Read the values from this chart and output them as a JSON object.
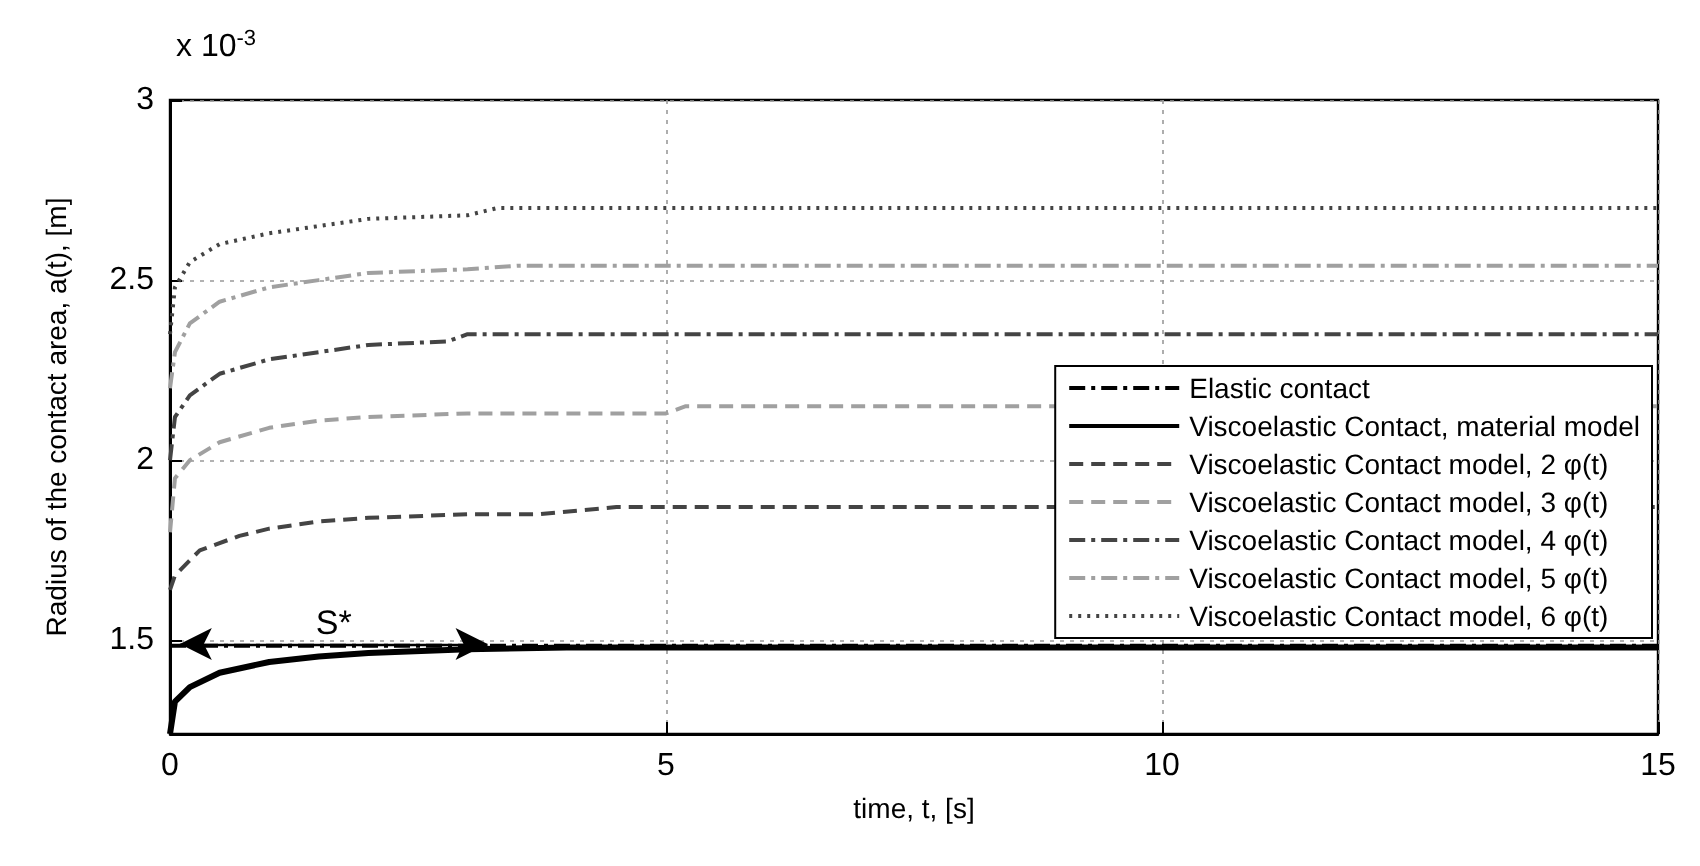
{
  "chart_data": {
    "type": "line",
    "xlabel": "time, t, [s]",
    "ylabel": "Radius of the contact area, a(t), [m]",
    "xlim": [
      0,
      15
    ],
    "xticks": [
      0,
      5,
      10,
      15
    ],
    "ylim": [
      1.24,
      3
    ],
    "yticks": [
      1.5,
      2,
      2.5,
      3
    ],
    "grid": true,
    "legend": "right",
    "marker": "none",
    "annotations": [
      "x 10$^{-3}$",
      {
        "text": "S*",
        "x": 1.65,
        "y": 1.49
      }
    ],
    "series": [
      {
        "name": "Elastic contact",
        "color": "#000000",
        "line_style": "dashdot",
        "x": [
          0,
          15
        ],
        "values": [
          1.485,
          1.485
        ]
      },
      {
        "name": "Viscoelastic Contact, material model",
        "color": "#000000",
        "line_style": "solid",
        "x": [
          0,
          0.05,
          0.2,
          0.5,
          1,
          1.5,
          2,
          3,
          4,
          6,
          15
        ],
        "values": [
          1.24,
          1.33,
          1.37,
          1.41,
          1.44,
          1.455,
          1.465,
          1.475,
          1.48,
          1.48,
          1.48
        ]
      },
      {
        "name": "Viscoelastic Contact model, 2 φ(t)",
        "color": "#444444",
        "line_style": "dashed",
        "x": [
          0,
          0.05,
          0.3,
          0.7,
          1,
          1.5,
          2,
          3,
          3.7,
          4.5,
          15
        ],
        "values": [
          1.64,
          1.68,
          1.75,
          1.79,
          1.81,
          1.83,
          1.84,
          1.85,
          1.85,
          1.87,
          1.87
        ]
      },
      {
        "name": "Viscoelastic Contact model, 3 φ(t)",
        "color": "#a0a0a0",
        "line_style": "dashed",
        "x": [
          0,
          0.05,
          0.2,
          0.5,
          1,
          1.5,
          2,
          3,
          5,
          5.2,
          15
        ],
        "values": [
          1.8,
          1.95,
          2.0,
          2.05,
          2.09,
          2.11,
          2.12,
          2.13,
          2.13,
          2.15,
          2.15
        ]
      },
      {
        "name": "Viscoelastic Contact model, 4 φ(t)",
        "color": "#444444",
        "line_style": "dashdot",
        "x": [
          0,
          0.05,
          0.2,
          0.5,
          1,
          1.5,
          2,
          2.8,
          3,
          15
        ],
        "values": [
          2.0,
          2.12,
          2.18,
          2.24,
          2.28,
          2.3,
          2.32,
          2.33,
          2.35,
          2.35
        ]
      },
      {
        "name": "Viscoelastic Contact model, 5 φ(t)",
        "color": "#a0a0a0",
        "line_style": "dashdot",
        "x": [
          0,
          0.05,
          0.2,
          0.5,
          1,
          1.5,
          2,
          3,
          3.5,
          15
        ],
        "values": [
          2.2,
          2.3,
          2.38,
          2.44,
          2.48,
          2.5,
          2.52,
          2.53,
          2.54,
          2.54
        ]
      },
      {
        "name": "Viscoelastic Contact model, 6 φ(t)",
        "color": "#444444",
        "line_style": "dotted",
        "x": [
          0,
          0.05,
          0.2,
          0.5,
          1,
          1.5,
          2,
          3,
          3.3,
          15
        ],
        "values": [
          2.35,
          2.48,
          2.55,
          2.6,
          2.63,
          2.65,
          2.67,
          2.68,
          2.7,
          2.7
        ]
      }
    ]
  }
}
